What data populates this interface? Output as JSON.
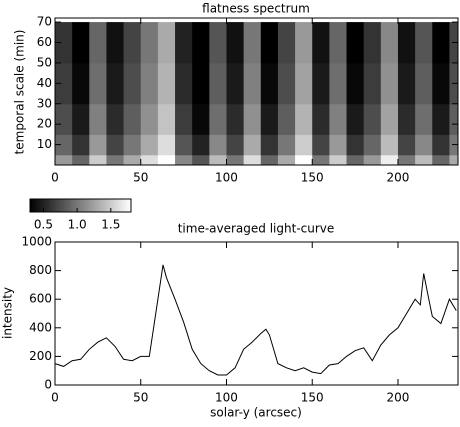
{
  "chart_data": [
    {
      "type": "heatmap",
      "title": "flatness spectrum",
      "y_label": "temporal scale (min)",
      "xbins": [
        0,
        10,
        20,
        30,
        40,
        50,
        60,
        70,
        80,
        90,
        100,
        110,
        120,
        130,
        140,
        150,
        160,
        170,
        180,
        190,
        200,
        210,
        220,
        230,
        235
      ],
      "ybins": [
        0,
        5,
        15,
        30,
        50,
        70
      ],
      "values": [
        [
          1.2,
          0.9,
          1.5,
          1.0,
          1.3,
          1.6,
          1.8,
          1.1,
          0.8,
          1.4,
          1.0,
          1.6,
          0.9,
          1.3,
          1.8,
          1.0,
          1.5,
          0.9,
          1.2,
          1.7,
          1.0,
          1.4,
          0.9,
          1.3
        ],
        [
          0.9,
          0.6,
          1.2,
          0.7,
          1.0,
          1.3,
          1.6,
          0.8,
          0.5,
          1.1,
          0.7,
          1.3,
          0.6,
          1.0,
          1.5,
          0.7,
          1.2,
          0.6,
          0.9,
          1.4,
          0.7,
          1.1,
          0.6,
          1.0
        ],
        [
          0.75,
          0.45,
          1.05,
          0.55,
          0.85,
          1.15,
          1.45,
          0.65,
          0.35,
          0.95,
          0.55,
          1.15,
          0.45,
          0.85,
          1.35,
          0.55,
          1.05,
          0.45,
          0.75,
          1.25,
          0.55,
          0.95,
          0.45,
          0.85
        ],
        [
          0.65,
          0.35,
          0.95,
          0.45,
          0.75,
          1.05,
          1.35,
          0.55,
          0.3,
          0.85,
          0.45,
          1.05,
          0.35,
          0.75,
          1.25,
          0.45,
          0.95,
          0.35,
          0.65,
          1.15,
          0.45,
          0.85,
          0.35,
          0.75
        ],
        [
          0.6,
          0.3,
          0.9,
          0.4,
          0.7,
          1.0,
          1.3,
          0.5,
          0.3,
          0.8,
          0.4,
          1.0,
          0.3,
          0.7,
          1.2,
          0.4,
          0.9,
          0.3,
          0.6,
          1.1,
          0.4,
          0.8,
          0.3,
          0.7
        ]
      ],
      "colormap": "gray",
      "zlim": [
        0.3,
        1.8
      ],
      "zticks": [
        0.5,
        {
          "value": 1,
          "label": "1.0"
        },
        1.5
      ],
      "xlim": [
        0,
        235
      ],
      "xticks": [
        0,
        50,
        100,
        150,
        200
      ],
      "ylim": [
        0,
        72
      ],
      "yticks": [
        10,
        20,
        30,
        40,
        50,
        60,
        70
      ]
    },
    {
      "type": "line",
      "title": "time-averaged   light-curve",
      "x_label": "solar-y (arcsec)",
      "y_label": "intensity",
      "x": [
        0,
        5,
        10,
        15,
        20,
        25,
        30,
        35,
        40,
        45,
        50,
        55,
        60,
        63,
        65,
        70,
        75,
        80,
        85,
        90,
        95,
        100,
        105,
        110,
        115,
        120,
        123,
        125,
        130,
        135,
        140,
        145,
        150,
        155,
        160,
        165,
        170,
        175,
        180,
        185,
        190,
        195,
        200,
        205,
        210,
        213,
        215,
        218,
        220,
        225,
        230,
        234
      ],
      "series": [
        {
          "name": "intensity",
          "color": "#000000",
          "values": [
            150,
            130,
            170,
            180,
            250,
            300,
            330,
            270,
            180,
            170,
            200,
            200,
            600,
            840,
            750,
            600,
            440,
            250,
            150,
            100,
            70,
            70,
            120,
            250,
            300,
            360,
            390,
            350,
            150,
            120,
            100,
            120,
            90,
            80,
            140,
            150,
            200,
            240,
            260,
            170,
            280,
            350,
            400,
            500,
            600,
            560,
            780,
            600,
            480,
            430,
            600,
            520
          ]
        }
      ],
      "xlim": [
        0,
        235
      ],
      "xticks": [
        0,
        50,
        100,
        150,
        200
      ],
      "ylim": [
        0,
        1000
      ],
      "yticks": [
        0,
        200,
        400,
        600,
        800,
        1000
      ]
    }
  ]
}
